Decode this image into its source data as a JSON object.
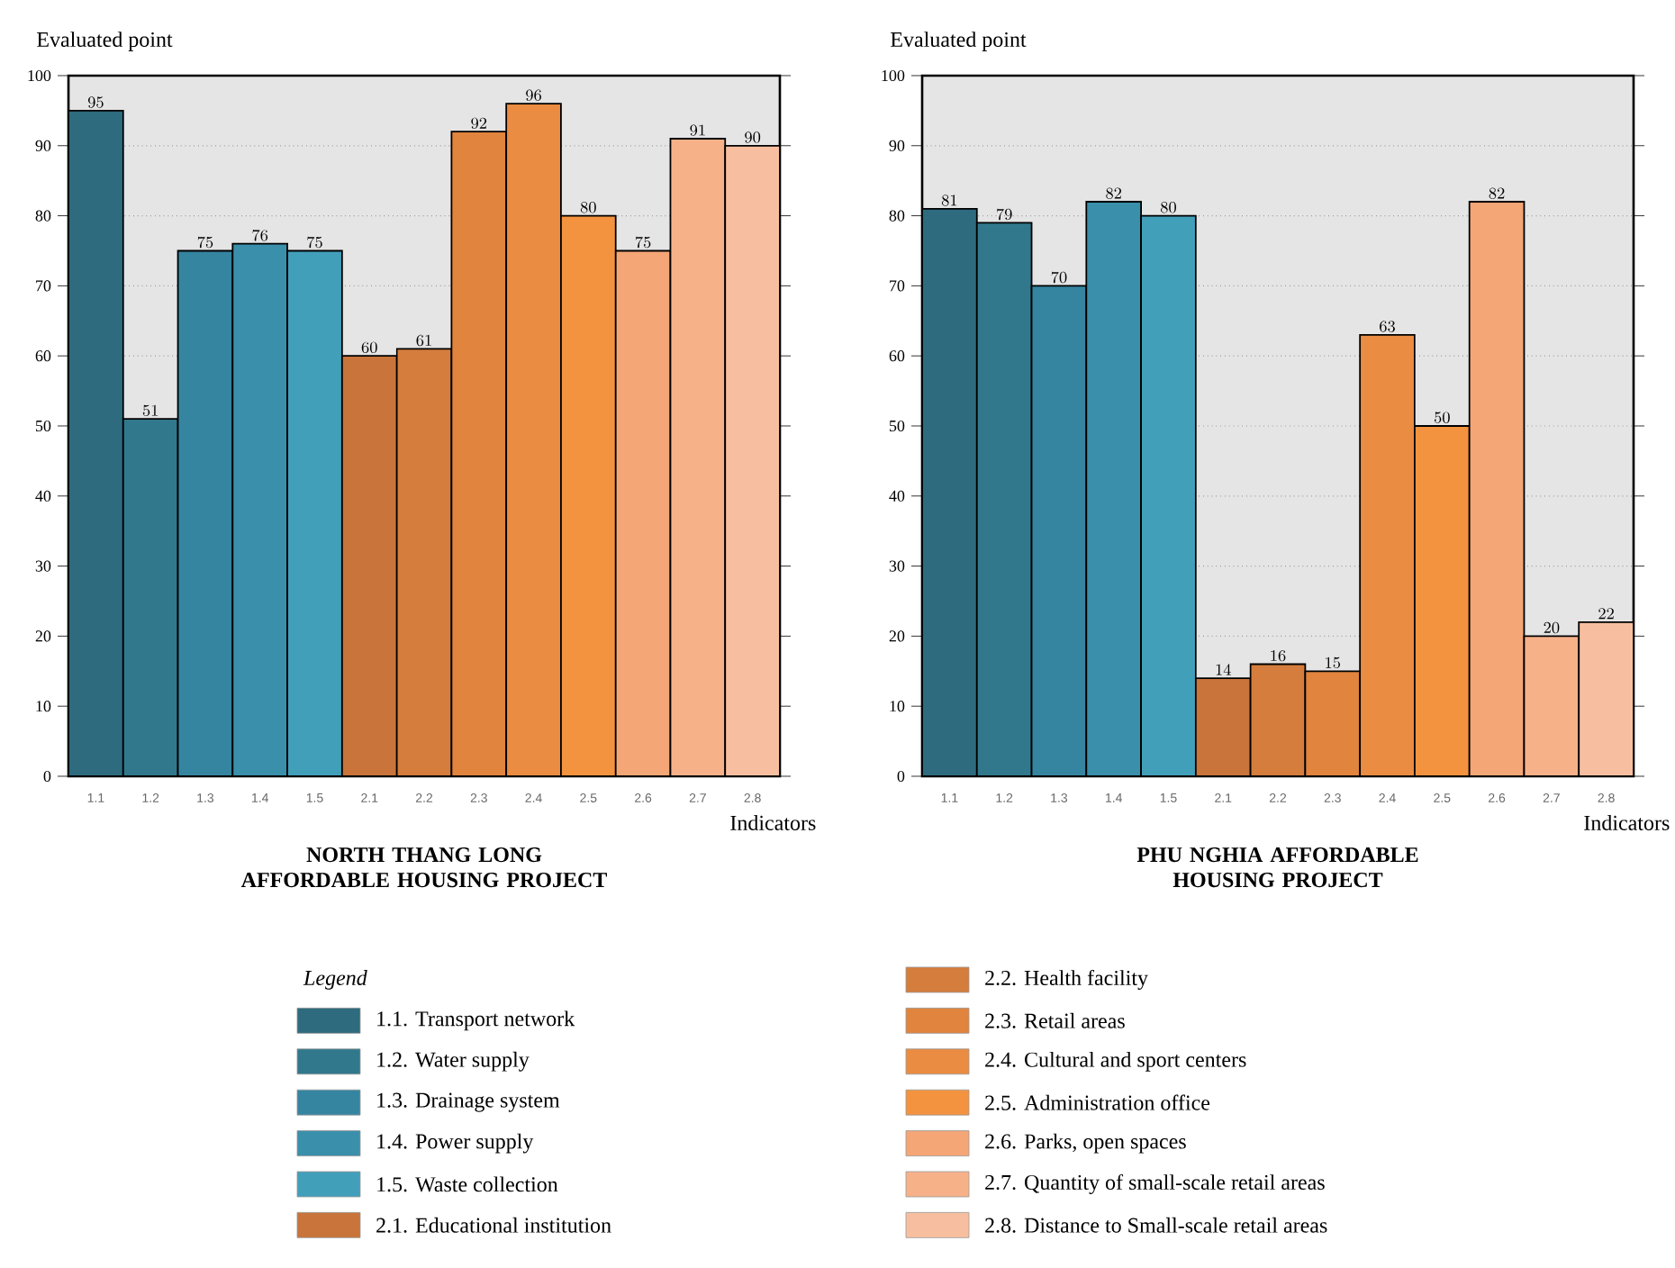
{
  "chart_data": [
    {
      "type": "bar",
      "title": "NORTH THANG LONG AFFORDABLE HOUSING PROJECT",
      "xlabel": "Indicators",
      "ylabel": "Evaluated point",
      "categories": [
        "1.1",
        "1.2",
        "1.3",
        "1.4",
        "1.5",
        "2.1",
        "2.2",
        "2.3",
        "2.4",
        "2.5",
        "2.6",
        "2.7",
        "2.8"
      ],
      "values": [
        95,
        51,
        75,
        76,
        75,
        60,
        61,
        92,
        96,
        80,
        75,
        91,
        90
      ],
      "colors": [
        "#2e6b7e",
        "#31788c",
        "#3585a0",
        "#3a8fab",
        "#429fba",
        "#c8743a",
        "#d47d3c",
        "#e0843e",
        "#ea8c42",
        "#f3933f",
        "#f5a676",
        "#f7b189",
        "#f7bf9f"
      ],
      "ylim": [
        0,
        100
      ],
      "yticks": [
        0,
        10,
        20,
        30,
        40,
        50,
        60,
        70,
        80,
        90,
        100
      ],
      "grid": "y",
      "data_labels": true
    },
    {
      "type": "bar",
      "title": "PHU NGHIA AFFORDABLE HOUSING PROJECT",
      "xlabel": "Indicators",
      "ylabel": "Evaluated point",
      "categories": [
        "1.1",
        "1.2",
        "1.3",
        "1.4",
        "1.5",
        "2.1",
        "2.2",
        "2.3",
        "2.4",
        "2.5",
        "2.6",
        "2.7",
        "2.8"
      ],
      "values": [
        81,
        79,
        70,
        82,
        80,
        14,
        16,
        15,
        63,
        50,
        82,
        20,
        22
      ],
      "colors": [
        "#2e6b7e",
        "#31788c",
        "#3585a0",
        "#3a8fab",
        "#429fba",
        "#c8743a",
        "#d47d3c",
        "#e0843e",
        "#ea8c42",
        "#f3933f",
        "#f5a676",
        "#f7b189",
        "#f7bf9f"
      ],
      "ylim": [
        0,
        100
      ],
      "yticks": [
        0,
        10,
        20,
        30,
        40,
        50,
        60,
        70,
        80,
        90,
        100
      ],
      "grid": "y",
      "data_labels": true
    },
    {
      "type": "other",
      "legend_title": "Legend",
      "categories": [
        "1.1. Transport network",
        "1.2. Water supply",
        "1.3. Drainage system",
        "1.4. Power supply",
        "1.5. Waste collection",
        "2.1. Educational institution",
        "2.2. Health facility",
        "2.3. Retail areas",
        "2.4. Cultural and sport centers",
        "2.5. Administration office",
        "2.6. Parks, open spaces",
        "2.7. Quantity of small-scale retail areas",
        "2.8. Distance to Small-scale retail areas"
      ],
      "colors": [
        "#2e6b7e",
        "#31788c",
        "#3585a0",
        "#3a8fab",
        "#429fba",
        "#c8743a",
        "#d47d3c",
        "#e0843e",
        "#ea8c42",
        "#f3933f",
        "#f5a676",
        "#f7b189",
        "#f7bf9f"
      ]
    }
  ]
}
